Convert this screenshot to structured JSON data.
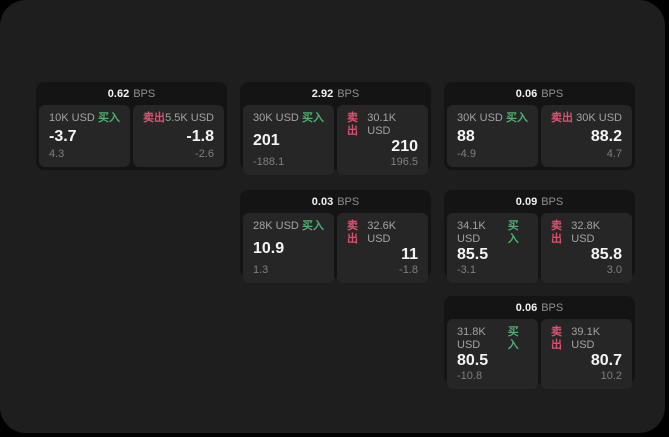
{
  "labels": {
    "bps": "BPS",
    "buy": "买入",
    "sell": "卖出"
  },
  "colors": {
    "buy_accent": "#4caf6e",
    "sell_accent": "#d9536f",
    "backdrop": "#000000",
    "window_bg": "#1e1e1e",
    "card_bg": "#141414",
    "panel_bg": "#262626"
  },
  "cards": [
    {
      "bps": "0.62",
      "buy": {
        "notional": "10K USD",
        "price": "-3.7",
        "delta": "4.3"
      },
      "sell": {
        "notional": "5.5K USD",
        "price": "-1.8",
        "delta": "-2.6"
      }
    },
    {
      "bps": "2.92",
      "buy": {
        "notional": "30K USD",
        "price": "201",
        "delta": "-188.1"
      },
      "sell": {
        "notional": "30.1K USD",
        "price": "210",
        "delta": "196.5"
      }
    },
    {
      "bps": "0.06",
      "buy": {
        "notional": "30K USD",
        "price": "88",
        "delta": "-4.9"
      },
      "sell": {
        "notional": "30K USD",
        "price": "88.2",
        "delta": "4.7"
      }
    },
    {
      "bps": "0.03",
      "buy": {
        "notional": "28K USD",
        "price": "10.9",
        "delta": "1.3"
      },
      "sell": {
        "notional": "32.6K USD",
        "price": "11",
        "delta": "-1.8"
      }
    },
    {
      "bps": "0.09",
      "buy": {
        "notional": "34.1K USD",
        "price": "85.5",
        "delta": "-3.1"
      },
      "sell": {
        "notional": "32.8K USD",
        "price": "85.8",
        "delta": "3.0"
      }
    },
    {
      "bps": "0.06",
      "buy": {
        "notional": "31.8K USD",
        "price": "80.5",
        "delta": "-10.8"
      },
      "sell": {
        "notional": "39.1K USD",
        "price": "80.7",
        "delta": "10.2"
      }
    }
  ]
}
